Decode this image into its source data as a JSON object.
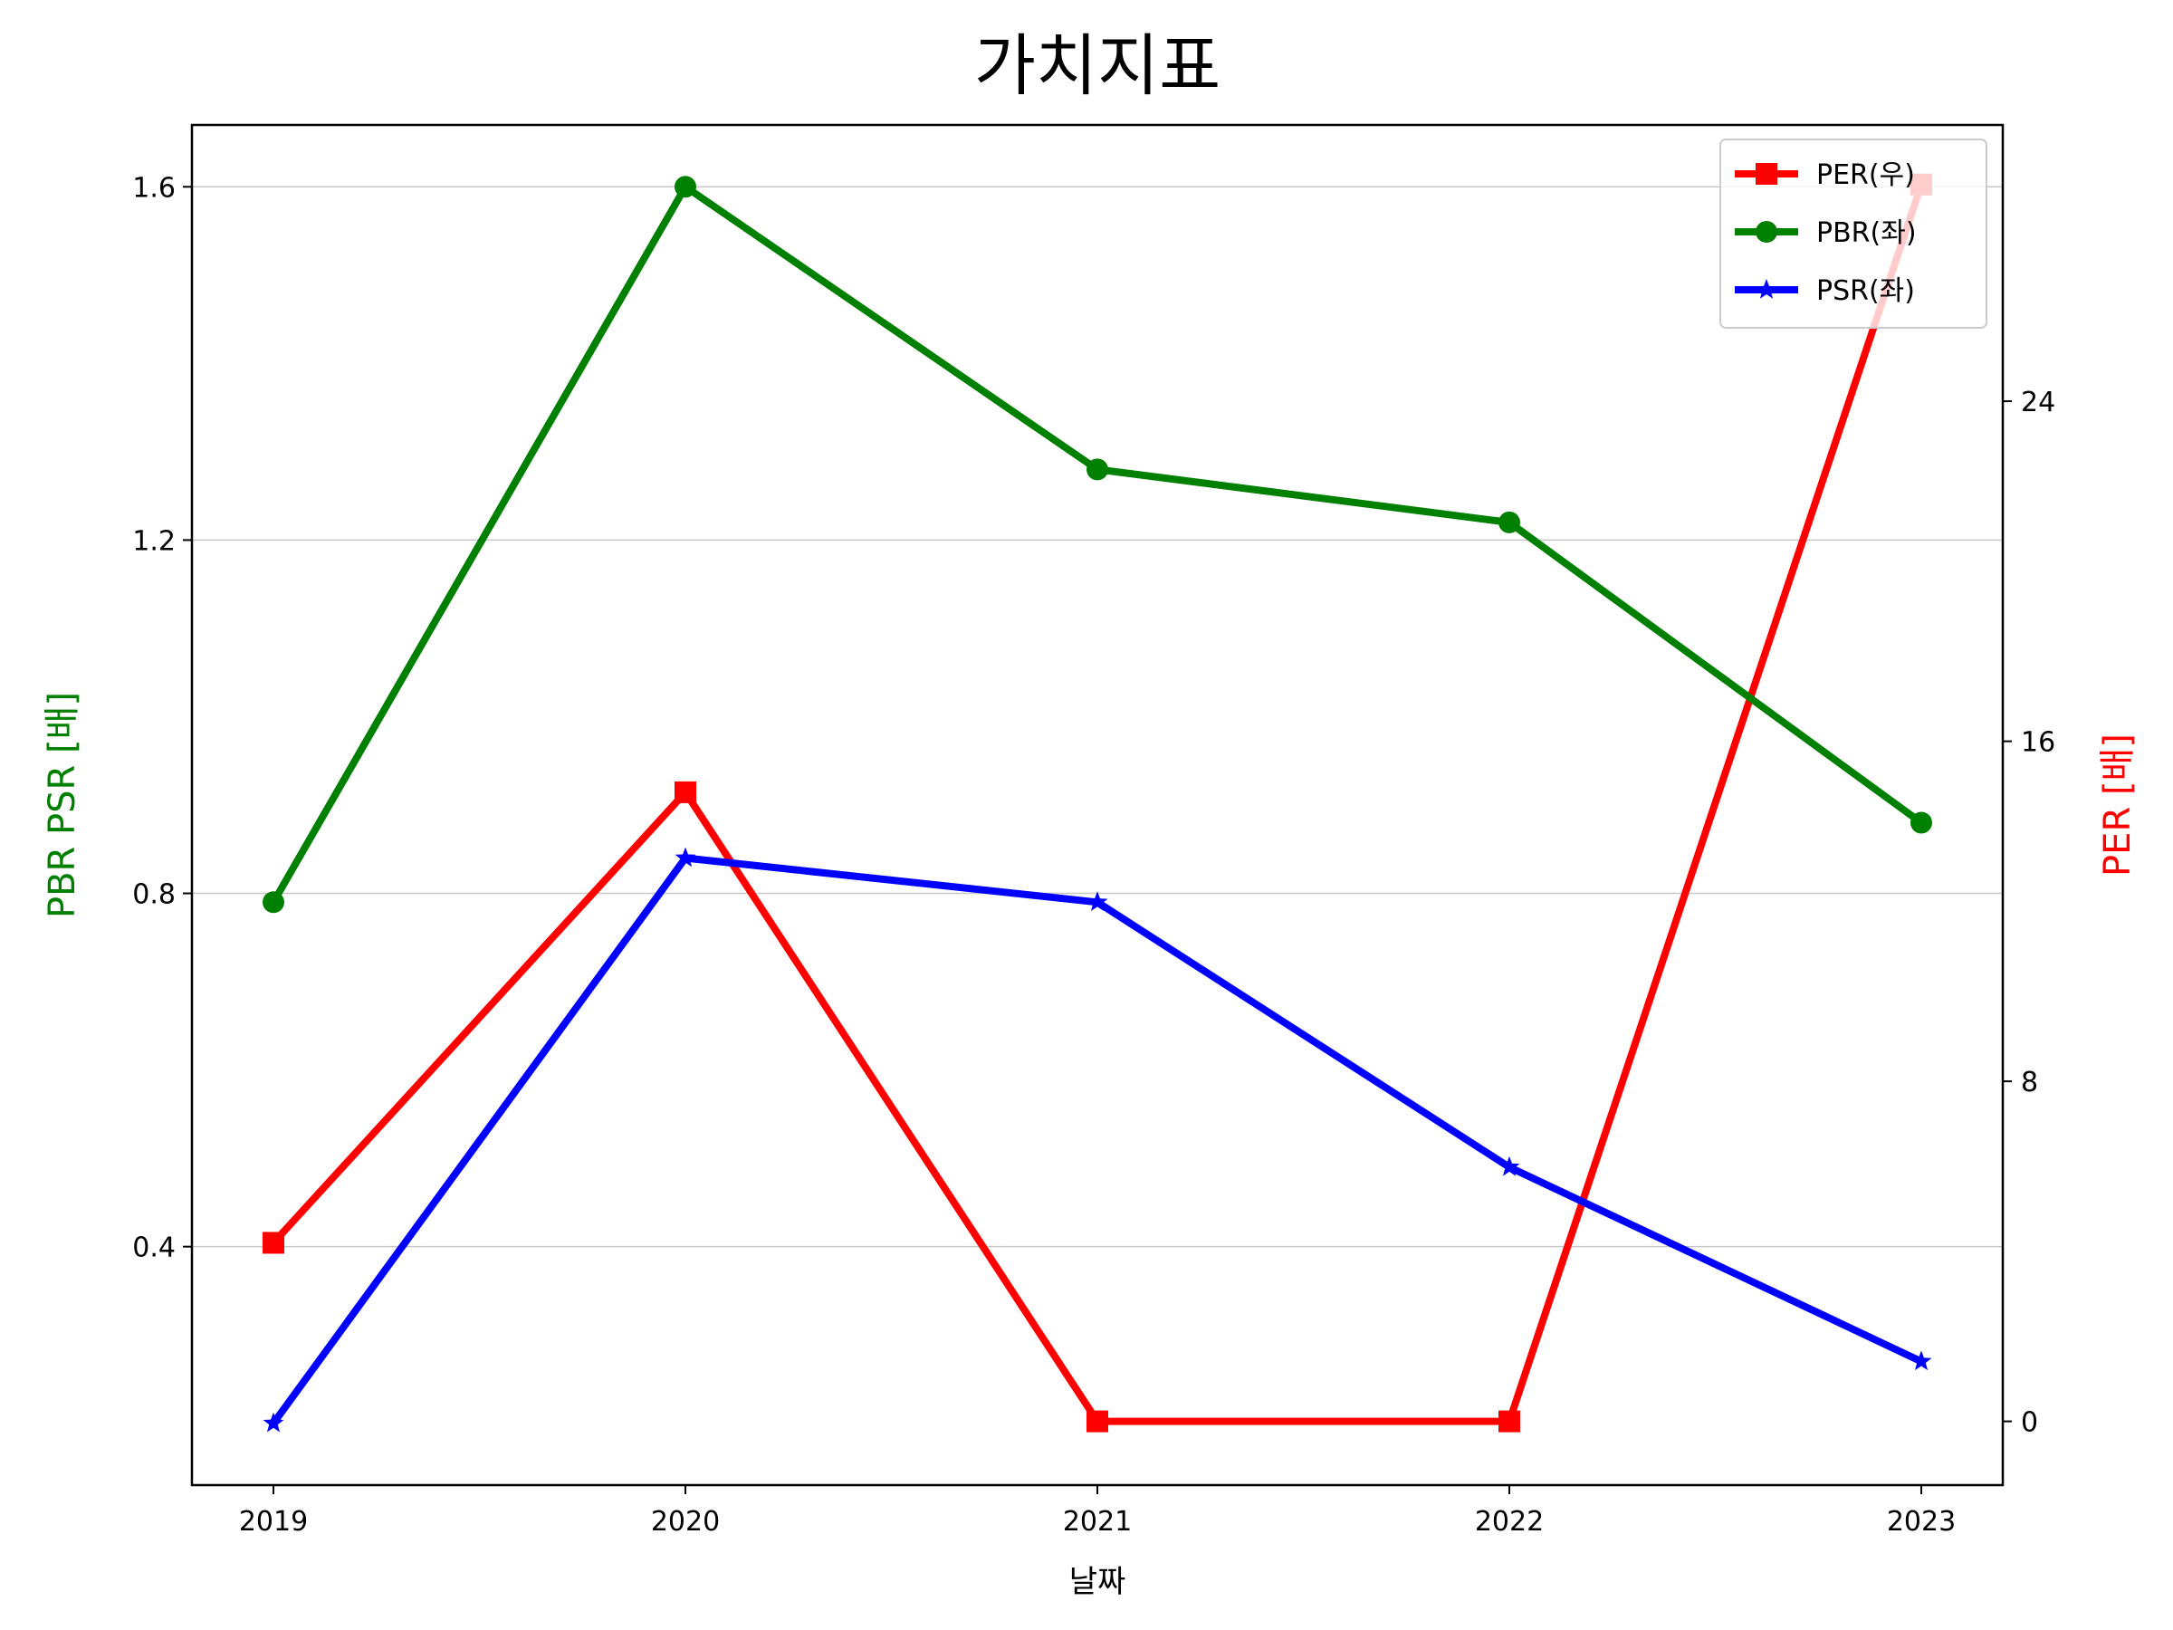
{
  "chart_data": {
    "type": "line",
    "title": "가치지표",
    "xlabel": "날짜",
    "ylabel_left": "PBR PSR [배]",
    "ylabel_right": "PER [배]",
    "x": [
      "2019",
      "2020",
      "2021",
      "2022",
      "2023"
    ],
    "y_left_ticks": [
      "0.4",
      "0.8",
      "1.2",
      "1.6"
    ],
    "y_right_ticks": [
      "0",
      "8",
      "16",
      "24"
    ],
    "y_left_lim": [
      0.13,
      1.67
    ],
    "y_right_lim": [
      -1.5,
      30.5
    ],
    "grid": "horizontal (left axis)",
    "legend_position": "top-right",
    "series": [
      {
        "name": "PER(우)",
        "axis": "right",
        "color": "#ff0000",
        "marker": "square",
        "values": [
          4.2,
          14.8,
          0,
          0,
          29.1
        ]
      },
      {
        "name": "PBR(좌)",
        "axis": "left",
        "color": "#008000",
        "marker": "circle",
        "values": [
          0.79,
          1.6,
          1.28,
          1.22,
          0.88
        ]
      },
      {
        "name": "PSR(좌)",
        "axis": "left",
        "color": "#0000ff",
        "marker": "star",
        "values": [
          0.2,
          0.84,
          0.79,
          0.49,
          0.27
        ]
      }
    ],
    "ylabel_left_color": "#008000",
    "ylabel_right_color": "#ff0000"
  }
}
